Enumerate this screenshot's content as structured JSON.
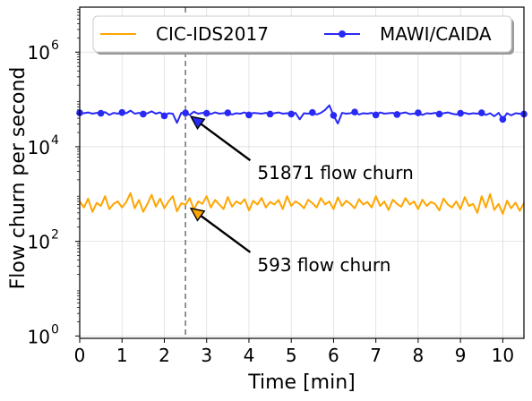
{
  "chart_data": {
    "type": "line",
    "xlabel": "Time [min]",
    "ylabel": "Flow churn per second",
    "xlim": [
      0,
      10.5
    ],
    "ylim_log10": [
      -0.05,
      6.95
    ],
    "yscale": "log",
    "x_ticks": [
      0,
      1,
      2,
      3,
      4,
      5,
      6,
      7,
      8,
      9,
      10
    ],
    "y_ticks": [
      1,
      100,
      10000,
      1000000
    ],
    "y_tick_labels": [
      {
        "base": "10",
        "exp": "0"
      },
      {
        "base": "10",
        "exp": "2"
      },
      {
        "base": "10",
        "exp": "4"
      },
      {
        "base": "10",
        "exp": "6"
      }
    ],
    "grid": true,
    "legend_placement": "top-center",
    "vline_x": 2.5,
    "series": [
      {
        "name": "CIC-IDS2017",
        "color": "#ffa500",
        "marker": "none",
        "x": [
          0.0,
          0.1,
          0.2,
          0.3,
          0.4,
          0.5,
          0.6,
          0.7,
          0.8,
          0.9,
          1.0,
          1.1,
          1.2,
          1.3,
          1.4,
          1.5,
          1.6,
          1.7,
          1.8,
          1.9,
          2.0,
          2.1,
          2.2,
          2.3,
          2.4,
          2.5,
          2.6,
          2.7,
          2.8,
          2.9,
          3.0,
          3.1,
          3.2,
          3.3,
          3.4,
          3.5,
          3.6,
          3.7,
          3.8,
          3.9,
          4.0,
          4.1,
          4.2,
          4.3,
          4.4,
          4.5,
          4.6,
          4.7,
          4.8,
          4.9,
          5.0,
          5.1,
          5.2,
          5.3,
          5.4,
          5.5,
          5.6,
          5.7,
          5.8,
          5.9,
          6.0,
          6.1,
          6.2,
          6.3,
          6.4,
          6.5,
          6.6,
          6.7,
          6.8,
          6.9,
          7.0,
          7.1,
          7.2,
          7.3,
          7.4,
          7.5,
          7.6,
          7.7,
          7.8,
          7.9,
          8.0,
          8.1,
          8.2,
          8.3,
          8.4,
          8.5,
          8.6,
          8.7,
          8.8,
          8.9,
          9.0,
          9.1,
          9.2,
          9.3,
          9.4,
          9.5,
          9.6,
          9.7,
          9.8,
          9.9,
          10.0,
          10.1,
          10.2,
          10.3,
          10.4,
          10.5
        ],
        "values": [
          700,
          520,
          800,
          420,
          650,
          560,
          900,
          480,
          620,
          700,
          520,
          680,
          1050,
          500,
          750,
          420,
          620,
          960,
          540,
          800,
          500,
          700,
          900,
          430,
          640,
          593,
          820,
          470,
          700,
          620,
          900,
          520,
          750,
          600,
          480,
          860,
          540,
          700,
          620,
          780,
          450,
          720,
          600,
          830,
          520,
          680,
          600,
          750,
          480,
          900,
          560,
          700,
          620,
          500,
          760,
          640,
          520,
          820,
          600,
          700,
          480,
          850,
          560,
          720,
          620,
          500,
          780,
          600,
          680,
          520,
          900,
          560,
          700,
          460,
          760,
          620,
          540,
          820,
          600,
          700,
          480,
          760,
          560,
          680,
          620,
          450,
          800,
          600,
          520,
          700,
          480,
          860,
          560,
          620,
          400,
          900,
          520,
          1000,
          460,
          620,
          380,
          720,
          500,
          660,
          440,
          640
        ]
      },
      {
        "name": "MAWI/CAIDA",
        "color": "#2929f5",
        "marker": "circle",
        "x": [
          0.0,
          0.1,
          0.2,
          0.3,
          0.4,
          0.5,
          0.6,
          0.7,
          0.8,
          0.9,
          1.0,
          1.1,
          1.2,
          1.3,
          1.4,
          1.5,
          1.6,
          1.7,
          1.8,
          1.9,
          2.0,
          2.1,
          2.2,
          2.3,
          2.4,
          2.5,
          2.6,
          2.7,
          2.8,
          2.9,
          3.0,
          3.1,
          3.2,
          3.3,
          3.4,
          3.5,
          3.6,
          3.7,
          3.8,
          3.9,
          4.0,
          4.1,
          4.2,
          4.3,
          4.4,
          4.5,
          4.6,
          4.7,
          4.8,
          4.9,
          5.0,
          5.1,
          5.2,
          5.3,
          5.4,
          5.5,
          5.6,
          5.7,
          5.8,
          5.9,
          6.0,
          6.1,
          6.2,
          6.3,
          6.4,
          6.5,
          6.6,
          6.7,
          6.8,
          6.9,
          7.0,
          7.1,
          7.2,
          7.3,
          7.4,
          7.5,
          7.6,
          7.7,
          7.8,
          7.9,
          8.0,
          8.1,
          8.2,
          8.3,
          8.4,
          8.5,
          8.6,
          8.7,
          8.8,
          8.9,
          9.0,
          9.1,
          9.2,
          9.3,
          9.4,
          9.5,
          9.6,
          9.7,
          9.8,
          9.9,
          10.0,
          10.1,
          10.2,
          10.3,
          10.4,
          10.5
        ],
        "values": [
          52000,
          51000,
          53000,
          50000,
          52000,
          51000,
          54000,
          47000,
          52000,
          50000,
          53000,
          51000,
          58000,
          50000,
          52000,
          49000,
          51000,
          56000,
          50000,
          53000,
          45000,
          51000,
          50000,
          32000,
          52000,
          51871,
          47000,
          55000,
          50000,
          52000,
          51000,
          49000,
          53000,
          50000,
          51000,
          52000,
          48000,
          51000,
          50000,
          53000,
          47000,
          52000,
          51000,
          50000,
          52000,
          49000,
          51000,
          53000,
          50000,
          51000,
          49000,
          52000,
          38000,
          51000,
          50000,
          53000,
          48000,
          52000,
          60000,
          75000,
          46000,
          31000,
          52000,
          50000,
          51000,
          54000,
          48000,
          51000,
          50000,
          52000,
          47000,
          53000,
          50000,
          51000,
          52000,
          48000,
          51000,
          53000,
          49000,
          50000,
          52000,
          47000,
          51000,
          50000,
          52000,
          49000,
          51000,
          53000,
          50000,
          48000,
          51000,
          52000,
          49000,
          51000,
          50000,
          52000,
          47000,
          51000,
          44000,
          52000,
          38000,
          51000,
          46000,
          51000,
          50000,
          49000
        ]
      }
    ],
    "annotations": [
      {
        "text": "51871 flow churn",
        "point_x": 2.5,
        "point_y": 51871,
        "arrow_color": "#2929f5",
        "text_x": 4.2,
        "text_y": 2800
      },
      {
        "text": "593 flow churn",
        "point_x": 2.5,
        "point_y": 593,
        "arrow_color": "#ffa500",
        "text_x": 4.2,
        "text_y": 32
      }
    ]
  }
}
